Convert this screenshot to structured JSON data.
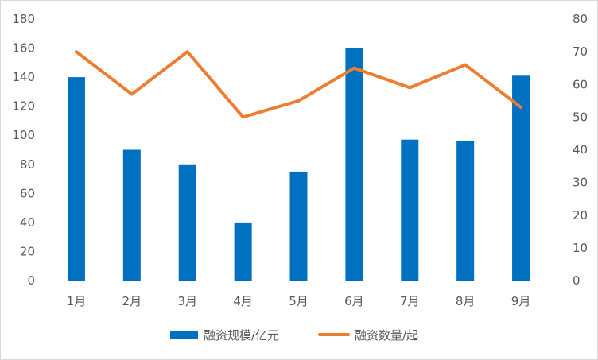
{
  "chart_data": {
    "type": "bar",
    "categories": [
      "1月",
      "2月",
      "3月",
      "4月",
      "5月",
      "6月",
      "7月",
      "8月",
      "9月"
    ],
    "series": [
      {
        "name": "融资规模/亿元",
        "type": "bar",
        "axis": "left",
        "color": "#0070C0",
        "values": [
          140,
          90,
          80,
          40,
          75,
          160,
          97,
          96,
          141
        ]
      },
      {
        "name": "融资数量/起",
        "type": "line",
        "axis": "right",
        "color": "#ED7D31",
        "values": [
          70,
          57,
          70,
          50,
          55,
          65,
          59,
          66,
          53
        ]
      }
    ],
    "ylim_left": [
      0,
      180
    ],
    "yticks_left": [
      "0",
      "20",
      "40",
      "60",
      "80",
      "100",
      "120",
      "140",
      "160",
      "180"
    ],
    "ylim_right": [
      0,
      80
    ],
    "yticks_right": [
      "0",
      "10",
      "20",
      "30",
      "40",
      "50",
      "60",
      "70",
      "80"
    ],
    "legend_position": "bottom",
    "grid": false
  }
}
